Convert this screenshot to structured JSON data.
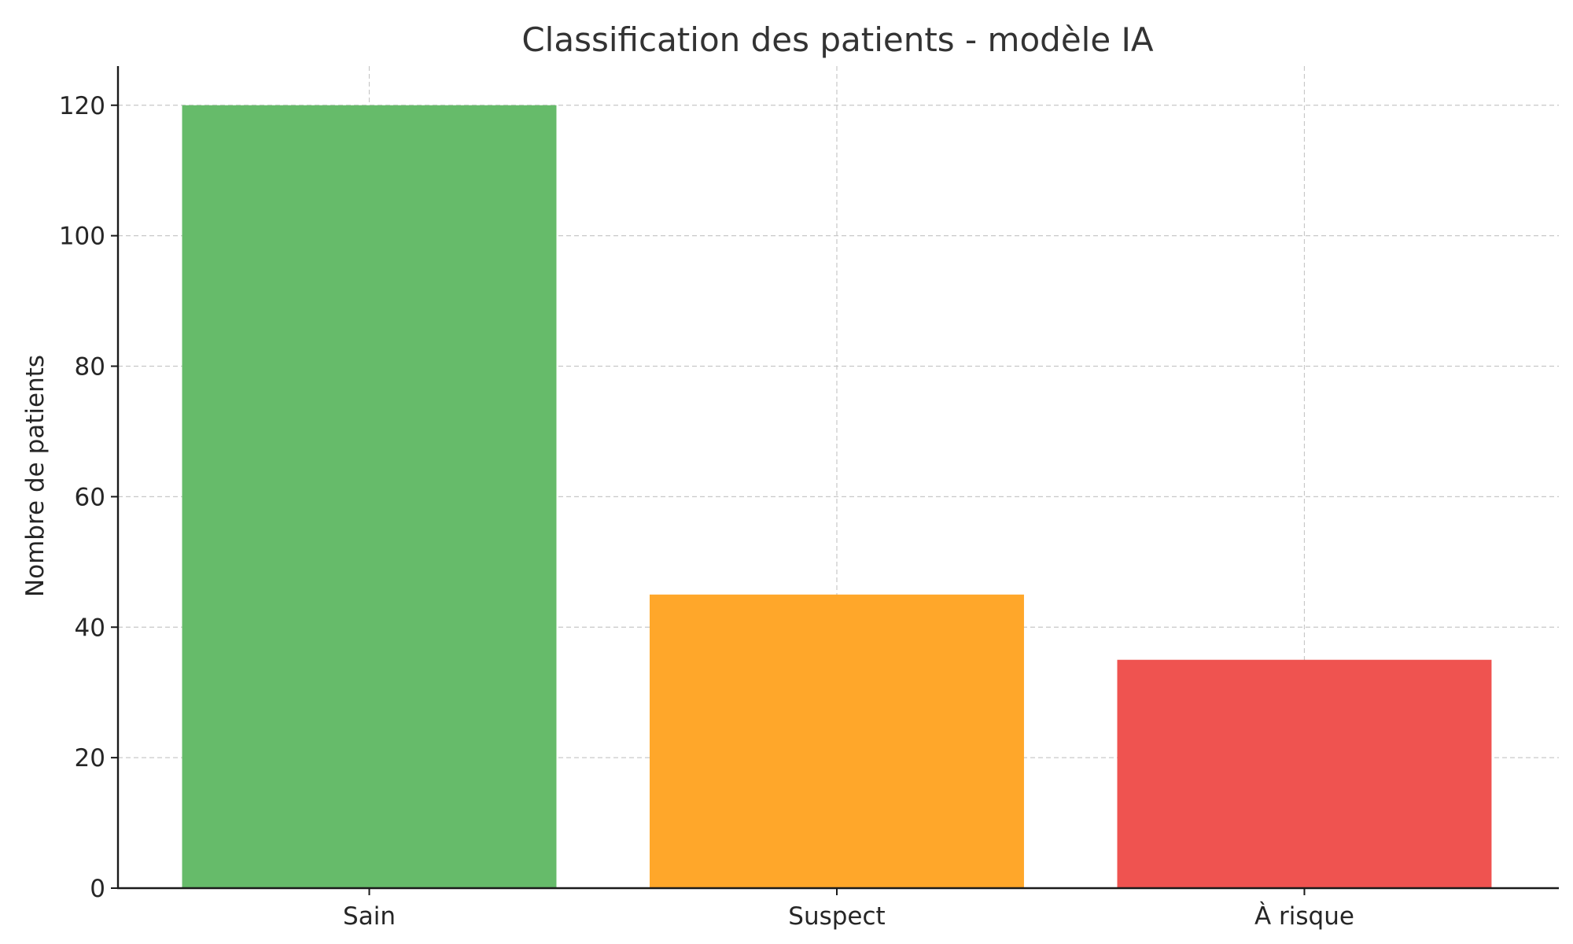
{
  "chart_data": {
    "type": "bar",
    "title": "Classification des patients - modèle IA",
    "xlabel": "",
    "ylabel": "Nombre de patients",
    "categories": [
      "Sain",
      "Suspect",
      "À risque"
    ],
    "values": [
      120,
      45,
      35
    ],
    "colors": [
      "#66bb6a",
      "#ffa72a",
      "#ef5350"
    ],
    "ylim": [
      0,
      126
    ],
    "yticks": [
      0,
      20,
      40,
      60,
      80,
      100,
      120
    ],
    "grid": true,
    "grid_style": "dashed",
    "legend": "none"
  }
}
